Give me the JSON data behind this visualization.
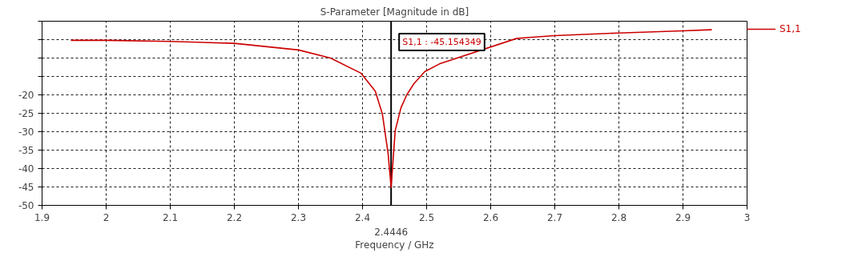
{
  "chart_data": {
    "type": "line",
    "title": "S-Parameter [Magnitude in dB]",
    "xlabel": "Frequency / GHz",
    "x": [
      1.945,
      2.0,
      2.1,
      2.2,
      2.3,
      2.35,
      2.3975,
      2.42,
      2.431,
      2.44,
      2.4446,
      2.451,
      2.46,
      2.469,
      2.48,
      2.497,
      2.52,
      2.64,
      2.66,
      2.7,
      2.8,
      2.9,
      2.945
    ],
    "series": [
      {
        "name": "S1,1",
        "color": "#cc0000",
        "values": [
          -5.2,
          -5.2,
          -5.5,
          -6.0,
          -7.8,
          -10.0,
          -14.1,
          -19.0,
          -25.2,
          -36.0,
          -45.15,
          -29.7,
          -23.5,
          -20.0,
          -17.0,
          -13.7,
          -11.6,
          -4.7,
          -4.4,
          -3.9,
          -3.2,
          -2.6,
          -2.3
        ]
      }
    ],
    "xlim": [
      1.9,
      3
    ],
    "xticks": [
      1.9,
      2,
      2.1,
      2.2,
      2.3,
      2.4,
      2.5,
      2.6,
      2.7,
      2.8,
      2.9,
      3
    ],
    "ylim": [
      -50,
      0
    ],
    "yticks": [
      -50,
      -45,
      -40,
      -35,
      -30,
      -25,
      -20,
      {
        "value": -15,
        "label": null
      },
      {
        "value": -10,
        "label": null
      },
      {
        "value": -5,
        "label": null
      },
      {
        "value": 0,
        "label": null
      }
    ],
    "ref_lines": [
      {
        "axis": "x",
        "value": 2.4446,
        "label": "2.4446",
        "color": "#000000"
      }
    ],
    "annotations": [
      "S1,1 : -45.154349"
    ],
    "grid": true,
    "legend": "right",
    "marker": "none",
    "line_style": "solid"
  }
}
